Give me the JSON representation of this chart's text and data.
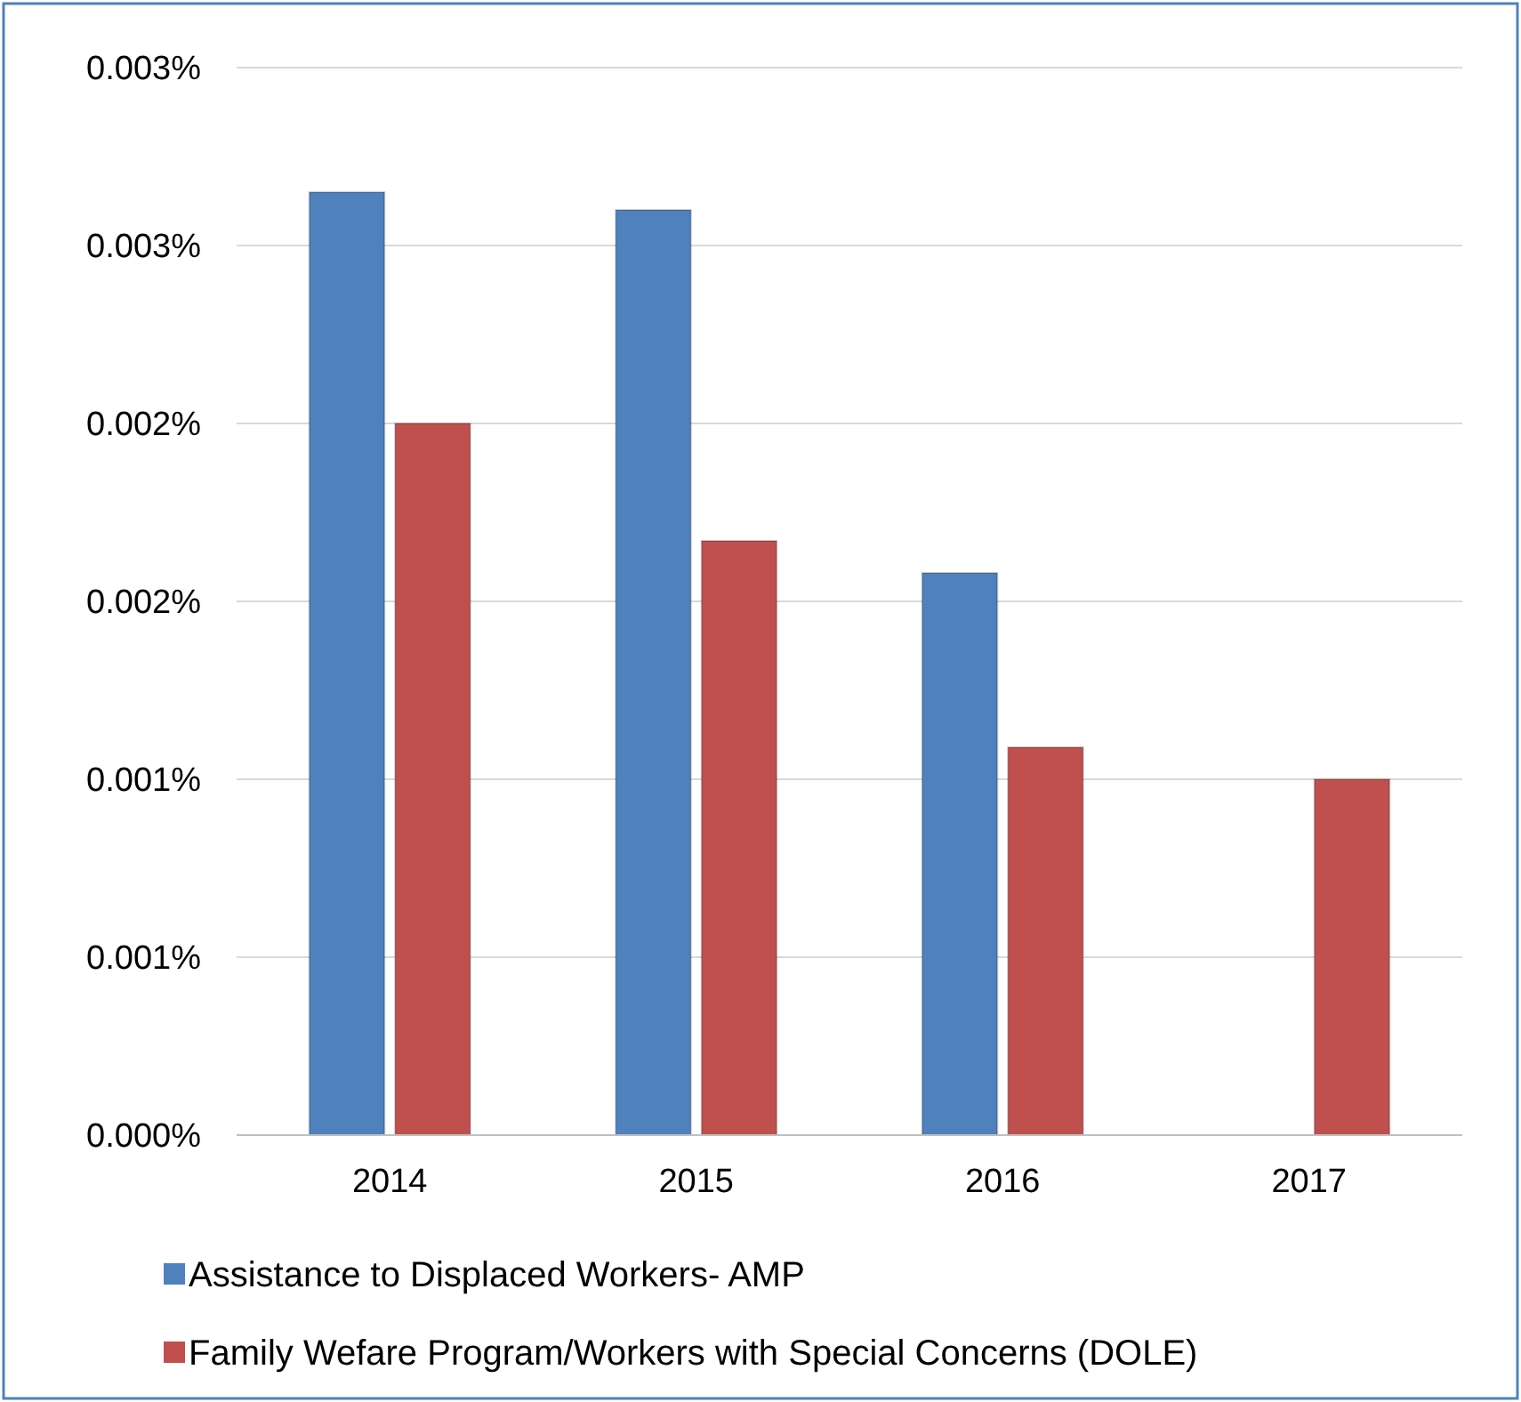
{
  "chart_data": {
    "type": "bar",
    "categories": [
      "2014",
      "2015",
      "2016",
      "2017"
    ],
    "series": [
      {
        "name": "Assistance to Displaced Workers- AMP",
        "color": "#4f81bd",
        "values": [
          0.00265,
          0.0026,
          0.00158,
          null
        ]
      },
      {
        "name": "Family Wefare Program/Workers with Special Concerns (DOLE)",
        "color": "#c0504d",
        "values": [
          0.002,
          0.00167,
          0.00109,
          0.001
        ]
      }
    ],
    "ylim": [
      0,
      0.003
    ],
    "yticks": [
      {
        "value": 0,
        "label": "0.000%"
      },
      {
        "value": 0.0005,
        "label": "0.001%"
      },
      {
        "value": 0.001,
        "label": "0.001%"
      },
      {
        "value": 0.0015,
        "label": "0.002%"
      },
      {
        "value": 0.002,
        "label": "0.002%"
      },
      {
        "value": 0.0025,
        "label": "0.003%"
      },
      {
        "value": 0.003,
        "label": "0.003%"
      }
    ],
    "grid": "y",
    "legend": "bottom"
  }
}
